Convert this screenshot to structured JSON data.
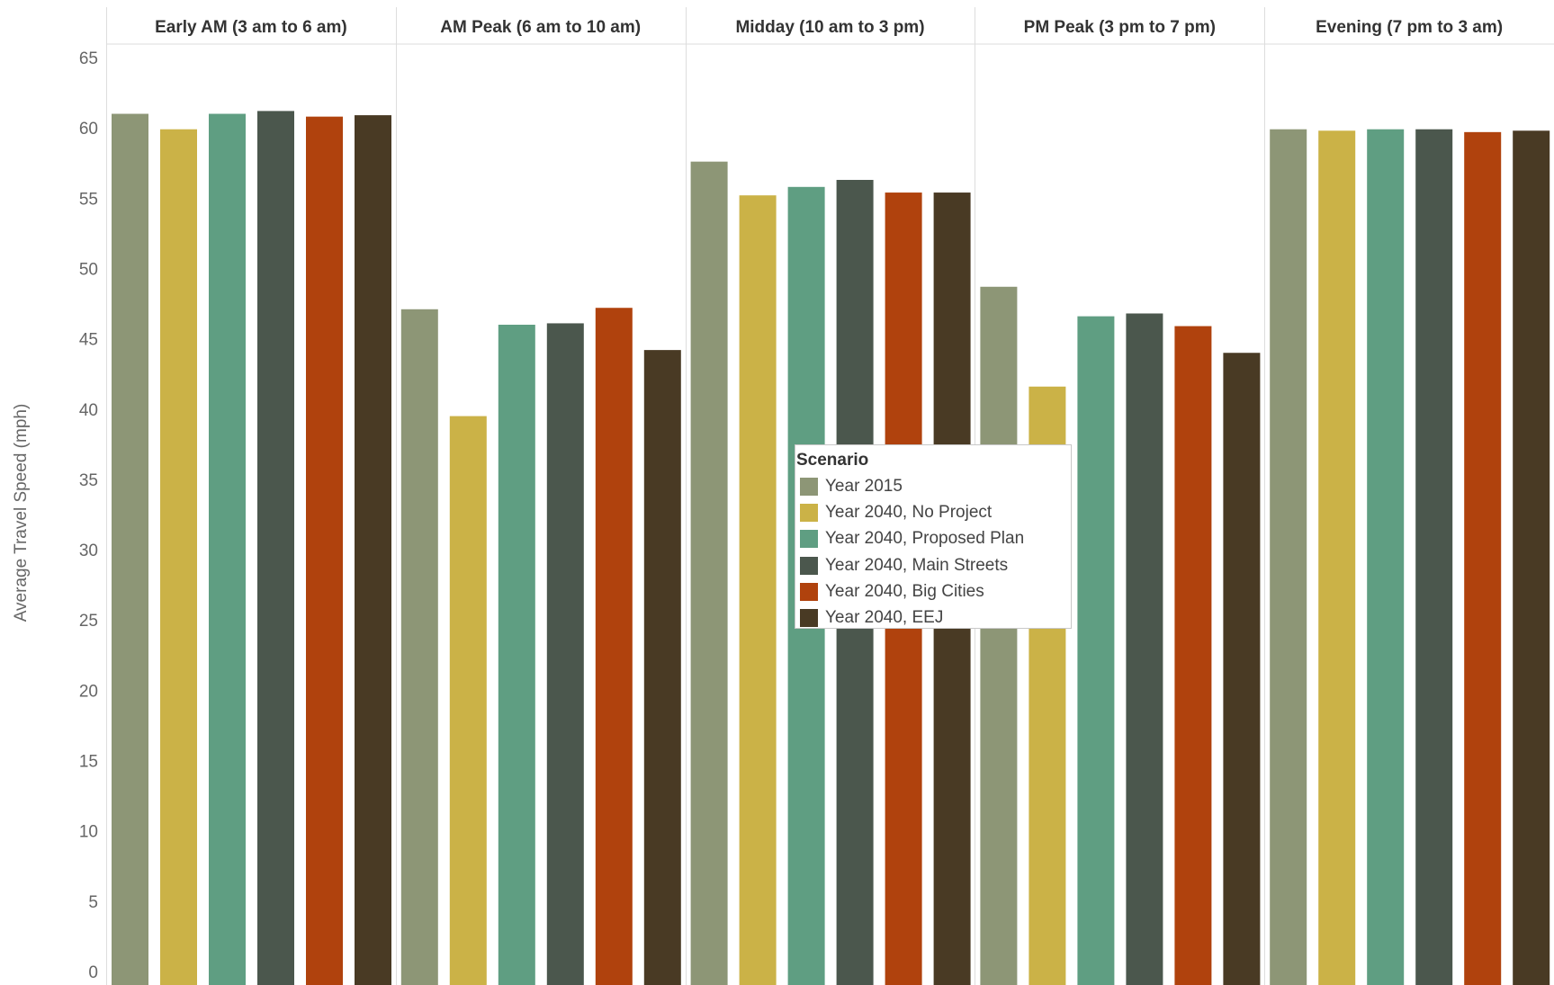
{
  "chart_data": {
    "type": "bar",
    "ylabel": "Average Travel Speed (mph)",
    "ylim": [
      0,
      65
    ],
    "yticks": [
      0,
      5,
      10,
      15,
      20,
      25,
      30,
      35,
      40,
      45,
      50,
      55,
      60,
      65
    ],
    "grid": false,
    "legend": {
      "title": "Scenario",
      "placement": "center overlay"
    },
    "panels": [
      "Early AM (3 am to 6 am)",
      "AM Peak (6 am to 10 am)",
      "Midday (10 am to 3 pm)",
      "PM Peak (3 pm to 7 pm)",
      "Evening (7 pm to 3 am)"
    ],
    "series": [
      {
        "name": "Year 2015",
        "color": "#8d9676",
        "values": [
          61.0,
          47.1,
          57.6,
          48.7,
          59.9
        ]
      },
      {
        "name": "Year 2040, No Project",
        "color": "#cbb247",
        "values": [
          59.9,
          39.5,
          55.2,
          41.6,
          59.8
        ]
      },
      {
        "name": "Year 2040, Proposed Plan",
        "color": "#5f9e82",
        "values": [
          61.0,
          46.0,
          55.8,
          46.6,
          59.9
        ]
      },
      {
        "name": "Year 2040, Main Streets",
        "color": "#4b574d",
        "values": [
          61.2,
          46.1,
          56.3,
          46.8,
          59.9
        ]
      },
      {
        "name": "Year 2040, Big Cities",
        "color": "#b0420d",
        "values": [
          60.8,
          47.2,
          55.4,
          45.9,
          59.7
        ]
      },
      {
        "name": "Year 2040, EEJ",
        "color": "#493a24",
        "values": [
          60.9,
          44.2,
          55.4,
          44.0,
          59.8
        ]
      }
    ]
  }
}
